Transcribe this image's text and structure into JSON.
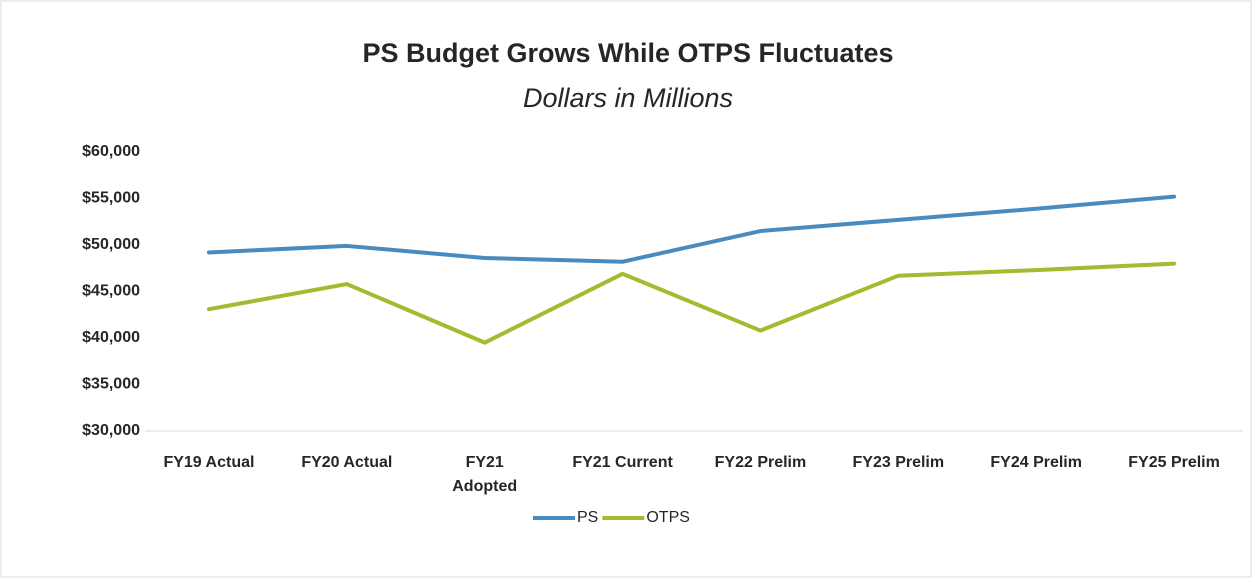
{
  "chart_data": {
    "type": "line",
    "title": "PS Budget Grows While OTPS Fluctuates",
    "subtitle": "Dollars in Millions",
    "categories": [
      "FY19 Actual",
      "FY20 Actual",
      "FY21 Adopted",
      "FY21 Current",
      "FY22 Prelim",
      "FY23 Prelim",
      "FY24 Prelim",
      "FY25 Prelim"
    ],
    "series": [
      {
        "name": "PS",
        "color": "#4a8bbf",
        "values": [
          49200,
          49900,
          48600,
          48200,
          51500,
          52700,
          53900,
          55200
        ]
      },
      {
        "name": "OTPS",
        "color": "#a0bc2f",
        "values": [
          43100,
          45800,
          39500,
          46900,
          40800,
          46700,
          47300,
          48000
        ]
      }
    ],
    "ylim": [
      30000,
      60000
    ],
    "yticks": [
      {
        "value": 30000,
        "label": "$30,000"
      },
      {
        "value": 35000,
        "label": "$35,000"
      },
      {
        "value": 40000,
        "label": "$40,000"
      },
      {
        "value": 45000,
        "label": "$45,000"
      },
      {
        "value": 50000,
        "label": "$50,000"
      },
      {
        "value": 55000,
        "label": "$55,000"
      },
      {
        "value": 60000,
        "label": "$60,000"
      }
    ],
    "grid": false,
    "legend": "bottom"
  }
}
